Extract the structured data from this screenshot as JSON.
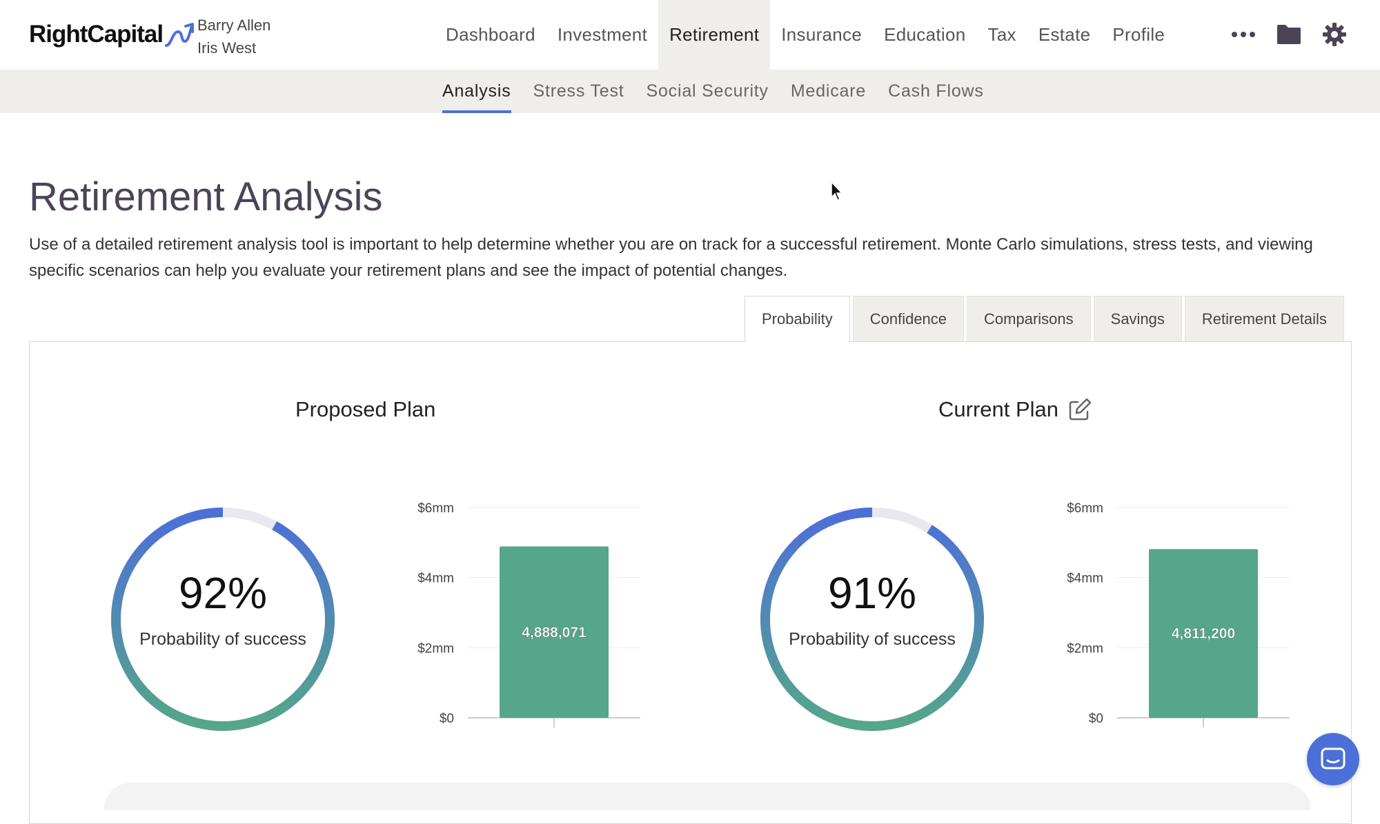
{
  "app": {
    "logo_text": "RightCapital",
    "clients": [
      "Barry Allen",
      "Iris West"
    ]
  },
  "main_nav": [
    "Dashboard",
    "Investment",
    "Retirement",
    "Insurance",
    "Education",
    "Tax",
    "Estate",
    "Profile"
  ],
  "main_nav_active": "Retirement",
  "top_icons": [
    "more-dots-icon",
    "folder-icon",
    "gear-icon"
  ],
  "sub_nav": [
    "Analysis",
    "Stress Test",
    "Social Security",
    "Medicare",
    "Cash Flows"
  ],
  "sub_nav_active": "Analysis",
  "page": {
    "title": "Retirement Analysis",
    "intro": "Use of a detailed retirement analysis tool is important to help determine whether you are on track for a successful retirement. Monte Carlo simulations, stress tests, and viewing specific scenarios can help you evaluate your retirement plans and see the impact of potential changes."
  },
  "tabs": [
    "Probability",
    "Confidence",
    "Comparisons",
    "Savings",
    "Retirement Details"
  ],
  "tabs_active": "Probability",
  "plans": {
    "proposed": {
      "title": "Proposed Plan",
      "probability": "92%",
      "probability_label": "Probability of success"
    },
    "current": {
      "title": "Current Plan",
      "probability": "91%",
      "probability_label": "Probability of success"
    }
  },
  "colors": {
    "accent": "#4d6fd8",
    "bar": "#55a68a",
    "title": "#4d4356",
    "gauge_track": "#e8e8ee"
  },
  "chart_data": [
    {
      "type": "bar",
      "y_ticks": [
        "$0",
        "$2mm",
        "$4mm",
        "$6mm"
      ],
      "ylim": [
        0,
        6000000
      ],
      "values": [
        4888071
      ],
      "value_labels": [
        "4,888,071"
      ],
      "gauge_value": 0.92
    },
    {
      "type": "bar",
      "y_ticks": [
        "$0",
        "$2mm",
        "$4mm",
        "$6mm"
      ],
      "ylim": [
        0,
        6000000
      ],
      "values": [
        4811200
      ],
      "value_labels": [
        "4,811,200"
      ],
      "gauge_value": 0.91
    }
  ]
}
